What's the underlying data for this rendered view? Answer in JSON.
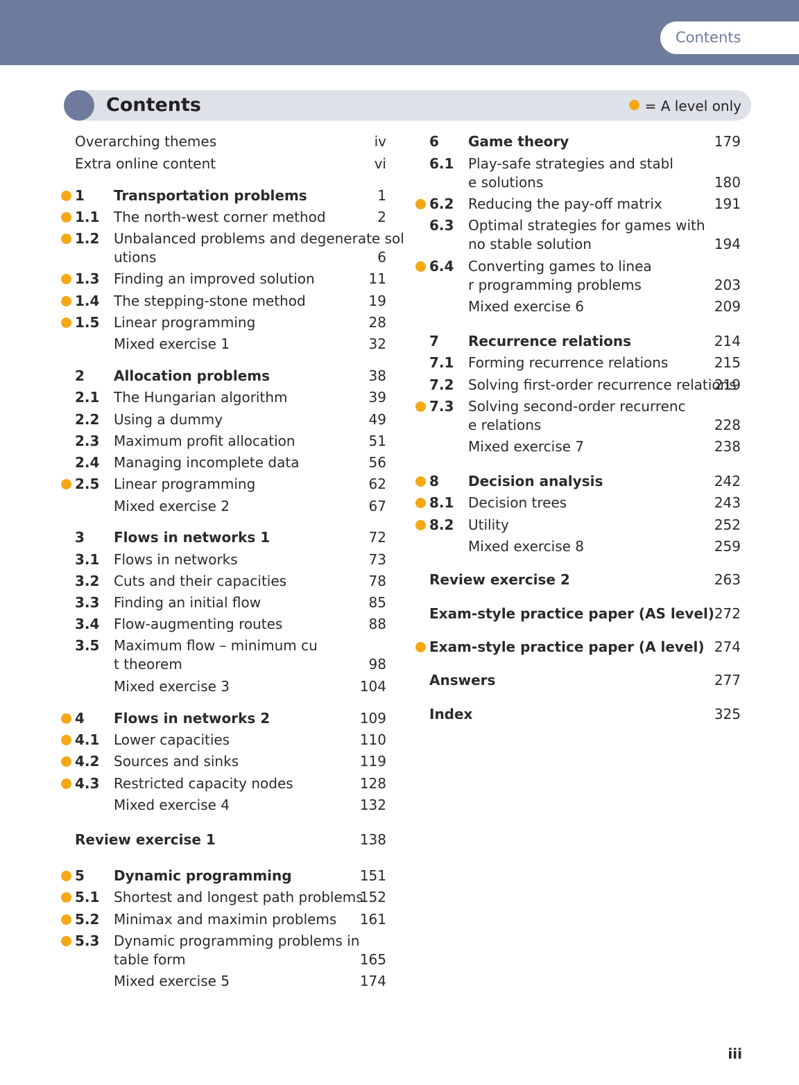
{
  "header": {
    "tab_label": "Contents"
  },
  "title": {
    "text": "Contents",
    "legend": "= A level only"
  },
  "left_column": [
    {
      "num": "",
      "text": "Overarching themes",
      "page": "iv",
      "a_level": false,
      "type": "plain"
    },
    {
      "num": "",
      "text": "Extra online content",
      "page": "vi",
      "a_level": false,
      "type": "plain"
    },
    {
      "num": "1",
      "text": "Transportation problems",
      "page": "1",
      "a_level": true,
      "type": "chapter"
    },
    {
      "num": "1.1",
      "text": "The north-west corner method",
      "page": "2",
      "a_level": true,
      "type": "section"
    },
    {
      "num": "1.2",
      "text": "Unbalanced problems and degenerate solutions",
      "page": "6",
      "a_level": true,
      "type": "section"
    },
    {
      "num": "1.3",
      "text": "Finding an improved solution",
      "page": "11",
      "a_level": true,
      "type": "section"
    },
    {
      "num": "1.4",
      "text": "The stepping-stone method",
      "page": "19",
      "a_level": true,
      "type": "section"
    },
    {
      "num": "1.5",
      "text": "Linear programming",
      "page": "28",
      "a_level": true,
      "type": "section"
    },
    {
      "num": "",
      "text": "Mixed exercise 1",
      "page": "32",
      "a_level": false,
      "type": "section"
    },
    {
      "num": "2",
      "text": "Allocation problems",
      "page": "38",
      "a_level": false,
      "type": "chapter"
    },
    {
      "num": "2.1",
      "text": "The Hungarian algorithm",
      "page": "39",
      "a_level": false,
      "type": "section"
    },
    {
      "num": "2.2",
      "text": "Using a dummy",
      "page": "49",
      "a_level": false,
      "type": "section"
    },
    {
      "num": "2.3",
      "text": "Maximum profit allocation",
      "page": "51",
      "a_level": false,
      "type": "section"
    },
    {
      "num": "2.4",
      "text": "Managing incomplete data",
      "page": "56",
      "a_level": false,
      "type": "section"
    },
    {
      "num": "2.5",
      "text": "Linear programming",
      "page": "62",
      "a_level": true,
      "type": "section"
    },
    {
      "num": "",
      "text": "Mixed exercise 2",
      "page": "67",
      "a_level": false,
      "type": "section"
    },
    {
      "num": "3",
      "text": "Flows in networks 1",
      "page": "72",
      "a_level": false,
      "type": "chapter"
    },
    {
      "num": "3.1",
      "text": "Flows in networks",
      "page": "73",
      "a_level": false,
      "type": "section"
    },
    {
      "num": "3.2",
      "text": "Cuts and their capacities",
      "page": "78",
      "a_level": false,
      "type": "section"
    },
    {
      "num": "3.3",
      "text": "Finding an initial flow",
      "page": "85",
      "a_level": false,
      "type": "section"
    },
    {
      "num": "3.4",
      "text": "Flow-augmenting routes",
      "page": "88",
      "a_level": false,
      "type": "section"
    },
    {
      "num": "3.5",
      "text": "Maximum flow – minimum cut theorem",
      "page": "98",
      "a_level": false,
      "type": "section"
    },
    {
      "num": "",
      "text": "Mixed exercise 3",
      "page": "104",
      "a_level": false,
      "type": "section"
    },
    {
      "num": "4",
      "text": "Flows in networks 2",
      "page": "109",
      "a_level": true,
      "type": "chapter"
    },
    {
      "num": "4.1",
      "text": "Lower capacities",
      "page": "110",
      "a_level": true,
      "type": "section"
    },
    {
      "num": "4.2",
      "text": "Sources and sinks",
      "page": "119",
      "a_level": true,
      "type": "section"
    },
    {
      "num": "4.3",
      "text": "Restricted capacity nodes",
      "page": "128",
      "a_level": true,
      "type": "section"
    },
    {
      "num": "",
      "text": "Mixed exercise 4",
      "page": "132",
      "a_level": false,
      "type": "section"
    },
    {
      "num": "",
      "text": "Review exercise 1",
      "page": "138",
      "a_level": false,
      "type": "review"
    },
    {
      "num": "5",
      "text": "Dynamic programming",
      "page": "151",
      "a_level": true,
      "type": "chapter"
    },
    {
      "num": "5.1",
      "text": "Shortest and longest path problems",
      "page": "152",
      "a_level": true,
      "type": "section"
    },
    {
      "num": "5.2",
      "text": "Minimax and maximin problems",
      "page": "161",
      "a_level": true,
      "type": "section"
    },
    {
      "num": "5.3",
      "text": "Dynamic programming problems in table form",
      "page": "165",
      "a_level": true,
      "type": "section"
    },
    {
      "num": "",
      "text": "Mixed exercise 5",
      "page": "174",
      "a_level": false,
      "type": "section"
    }
  ],
  "right_column": [
    {
      "num": "6",
      "text": "Game theory",
      "page": "179",
      "a_level": false,
      "type": "chapter"
    },
    {
      "num": "6.1",
      "text": "Play-safe strategies and stable solutions",
      "page": "180",
      "a_level": false,
      "type": "section"
    },
    {
      "num": "6.2",
      "text": "Reducing the pay-off matrix",
      "page": "191",
      "a_level": true,
      "type": "section"
    },
    {
      "num": "6.3",
      "text": "Optimal strategies for games with no stable solution",
      "page": "194",
      "a_level": false,
      "type": "section"
    },
    {
      "num": "6.4",
      "text": "Converting games to linear programming problems",
      "page": "203",
      "a_level": true,
      "type": "section"
    },
    {
      "num": "",
      "text": "Mixed exercise 6",
      "page": "209",
      "a_level": false,
      "type": "section"
    },
    {
      "num": "7",
      "text": "Recurrence relations",
      "page": "214",
      "a_level": false,
      "type": "chapter"
    },
    {
      "num": "7.1",
      "text": "Forming recurrence relations",
      "page": "215",
      "a_level": false,
      "type": "section"
    },
    {
      "num": "7.2",
      "text": "Solving first-order recurrence relations",
      "page": "219",
      "a_level": false,
      "type": "section"
    },
    {
      "num": "7.3",
      "text": "Solving second-order recurrence relations",
      "page": "228",
      "a_level": true,
      "type": "section"
    },
    {
      "num": "",
      "text": "Mixed exercise 7",
      "page": "238",
      "a_level": false,
      "type": "section"
    },
    {
      "num": "8",
      "text": "Decision analysis",
      "page": "242",
      "a_level": true,
      "type": "chapter"
    },
    {
      "num": "8.1",
      "text": "Decision trees",
      "page": "243",
      "a_level": true,
      "type": "section"
    },
    {
      "num": "8.2",
      "text": "Utility",
      "page": "252",
      "a_level": true,
      "type": "section"
    },
    {
      "num": "",
      "text": "Mixed exercise 8",
      "page": "259",
      "a_level": false,
      "type": "section"
    },
    {
      "num": "",
      "text": "Review exercise 2",
      "page": "263",
      "a_level": false,
      "type": "review"
    },
    {
      "num": "",
      "text": "Exam-style practice paper (AS level)",
      "page": "272",
      "a_level": false,
      "type": "review"
    },
    {
      "num": "",
      "text": "Exam-style practice paper (A level)",
      "page": "274",
      "a_level": true,
      "type": "review"
    },
    {
      "num": "",
      "text": "Answers",
      "page": "277",
      "a_level": false,
      "type": "review"
    },
    {
      "num": "",
      "text": "Index",
      "page": "325",
      "a_level": false,
      "type": "review"
    }
  ],
  "footer": {
    "page_number": "iii"
  },
  "colors": {
    "accent": "#6e7b9c",
    "a_level_dot": "#f4a813",
    "title_bar": "#dfe1e8"
  }
}
